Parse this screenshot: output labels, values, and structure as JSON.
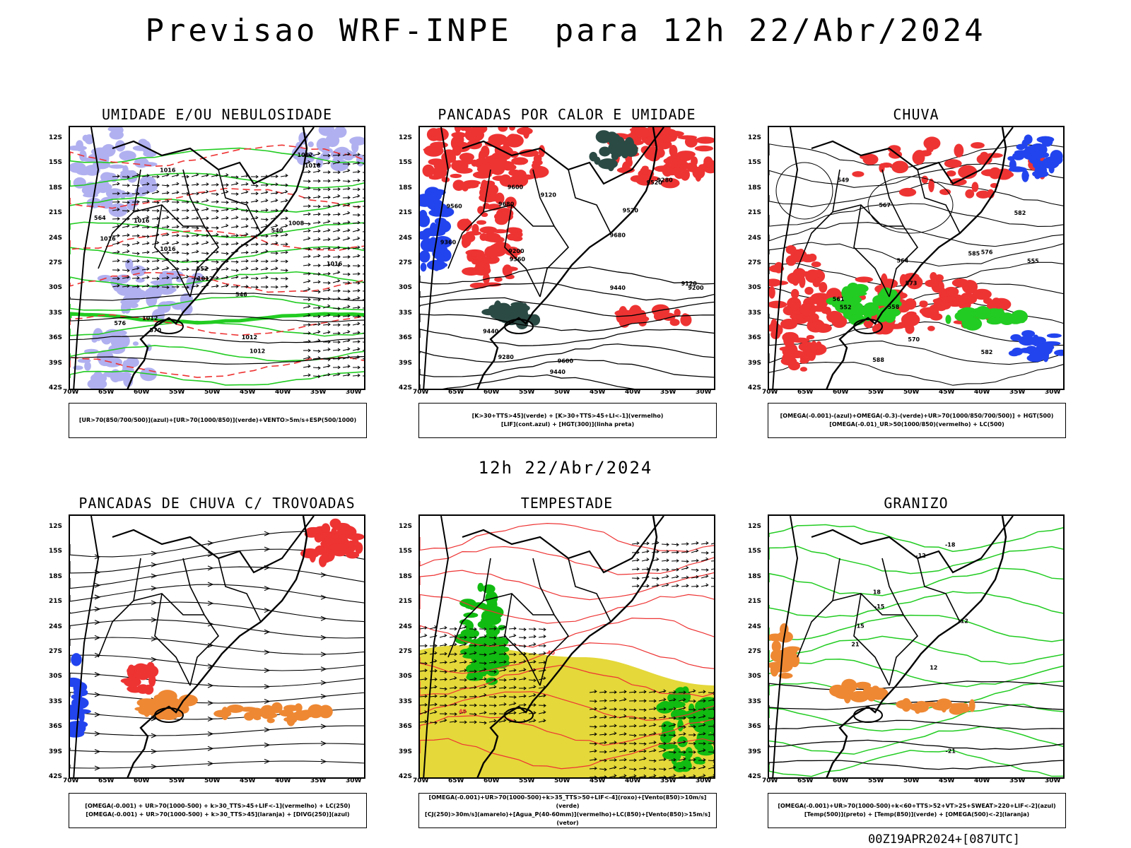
{
  "header": {
    "title": "Previsao WRF-INPE  para 12h 22/Abr/2024",
    "mid_date": "12h 22/Abr/2024",
    "footer": "00Z19APR2024+[087UTC]"
  },
  "axes": {
    "lat_labels": [
      "12S",
      "15S",
      "18S",
      "21S",
      "24S",
      "27S",
      "30S",
      "33S",
      "36S",
      "39S",
      "42S"
    ],
    "lon_labels": [
      "70W",
      "65W",
      "60W",
      "55W",
      "50W",
      "45W",
      "40W",
      "35W",
      "30W"
    ]
  },
  "panels": [
    {
      "id": "umidade",
      "title": "UMIDADE E/OU NEBULOSIDADE",
      "legend": [
        "[UR>70(850/700/500)](azul)+[UR>70(1000/850)](verde)+VENTO>5m/s+ESP(500/1000)"
      ],
      "contour_labels": [
        "1012",
        "1016",
        "1012",
        "1016",
        "1008",
        "1012",
        "1016",
        "1016",
        "1012",
        "570",
        "576",
        "564",
        "552",
        "546",
        "540",
        "1012",
        "1016",
        "1016"
      ]
    },
    {
      "id": "pancadas_calor",
      "title": "PANCADAS POR CALOR E UMIDADE",
      "legend": [
        "[K>30+TTS>45](verde) + [K>30+TTS>45+LI<-1](vermelho)",
        "[LIF](cont.azul) + [HGT(300)](linha preta)"
      ],
      "contour_labels": [
        "9560",
        "9680",
        "9680",
        "9600",
        "9520",
        "9440",
        "9440",
        "9360",
        "9280",
        "9200",
        "9120",
        "9600",
        "9520",
        "9440",
        "9360",
        "9280",
        "9200",
        "9120"
      ]
    },
    {
      "id": "chuva",
      "title": "CHUVA",
      "legend": [
        "[OMEGA(-0.001)-(azul)+OMEGA(-0.3)-(verde)+UR>70(1000/850/700/500)] + HGT(500)",
        "[OMEGA(-0.01)_UR>50(1000/850)(vermelho) + LC(500)"
      ],
      "contour_labels": [
        "585",
        "582",
        "576",
        "573",
        "570",
        "567",
        "564",
        "561",
        "558",
        "555",
        "552",
        "549",
        "588",
        "582"
      ]
    },
    {
      "id": "trovoadas",
      "title": "PANCADAS DE CHUVA C/ TROVOADAS",
      "legend": [
        "[OMEGA(-0.001) + UR>70(1000-500) + k>30_TTS>45+LIF<-1](vermelho) + LC(250)",
        "[OMEGA(-0.001) + UR>70(1000-500) + k>30_TTS>45](laranja) + [DIVG(250)](azul)"
      ],
      "contour_labels": []
    },
    {
      "id": "tempestade",
      "title": "TEMPESTADE",
      "legend": [
        "[OMEGA(-0.001)+UR>70(1000-500)+k>35_TTS>50+LIF<-4](roxo)+[Vento(850)>10m/s](verde)",
        "[CJ(250)>30m/s](amarelo)+[Agua_P(40-60mm)](vermelho)+LC(850)+[Vento(850)>15m/s](vetor)"
      ],
      "contour_labels": [
        "40",
        "40"
      ]
    },
    {
      "id": "granizo",
      "title": "GRANIZO",
      "legend": [
        "[OMEGA(-0.001)+UR>70(1000-500)+k<60+TTS>52+VT>25+SWEAT>220+LIF<-2](azul)",
        "[Temp(500)](preto) + [Temp(850)](verde) + [OMEGA(500)<-2](laranja)"
      ],
      "contour_labels": [
        "-12",
        "12",
        "-15",
        "15",
        "-18",
        "-21",
        "21",
        "-12",
        "18"
      ]
    }
  ]
}
